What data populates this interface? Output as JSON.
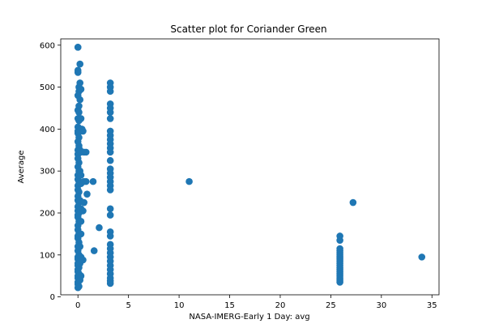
{
  "chart_data": {
    "type": "scatter",
    "title": "Scatter plot for Coriander Green",
    "xlabel": "NASA-IMERG-Early 1 Day: avg",
    "ylabel": "Average",
    "xlim": [
      -1.7,
      35.7
    ],
    "ylim": [
      5.0,
      615.0
    ],
    "xticks": [
      0,
      5,
      10,
      15,
      20,
      25,
      30,
      35
    ],
    "yticks": [
      0,
      100,
      200,
      300,
      400,
      500,
      600
    ],
    "grid": false,
    "legend": "none",
    "marker_color": "#1f77b4",
    "series": [
      {
        "points": [
          [
            0,
            595
          ],
          [
            0,
            595
          ],
          [
            0,
            535
          ],
          [
            0,
            540
          ],
          [
            0.1,
            500
          ],
          [
            0.1,
            490
          ],
          [
            0,
            480
          ],
          [
            0.1,
            455
          ],
          [
            0,
            445
          ],
          [
            0.1,
            440
          ],
          [
            0,
            425
          ],
          [
            0.1,
            420
          ],
          [
            0,
            405
          ],
          [
            0.1,
            400
          ],
          [
            0,
            395
          ],
          [
            0,
            390
          ],
          [
            0.1,
            380
          ],
          [
            0,
            370
          ],
          [
            0.1,
            360
          ],
          [
            0,
            350
          ],
          [
            0.1,
            345
          ],
          [
            0,
            340
          ],
          [
            0,
            330
          ],
          [
            0.1,
            320
          ],
          [
            0,
            310
          ],
          [
            0.1,
            300
          ],
          [
            0,
            290
          ],
          [
            0,
            280
          ],
          [
            0.1,
            275
          ],
          [
            0,
            265
          ],
          [
            0,
            255
          ],
          [
            0.1,
            250
          ],
          [
            0,
            240
          ],
          [
            0,
            230
          ],
          [
            0.1,
            225
          ],
          [
            0,
            215
          ],
          [
            0,
            205
          ],
          [
            0.1,
            200
          ],
          [
            0,
            195
          ],
          [
            0,
            190
          ],
          [
            0.1,
            180
          ],
          [
            0,
            170
          ],
          [
            0,
            160
          ],
          [
            0.1,
            150
          ],
          [
            0,
            145
          ],
          [
            0,
            140
          ],
          [
            0.1,
            130
          ],
          [
            0,
            120
          ],
          [
            0,
            110
          ],
          [
            0.1,
            100
          ],
          [
            0,
            95
          ],
          [
            0,
            90
          ],
          [
            0.1,
            85
          ],
          [
            0,
            80
          ],
          [
            0,
            75
          ],
          [
            0.1,
            70
          ],
          [
            0,
            65
          ],
          [
            0,
            60
          ],
          [
            0.1,
            55
          ],
          [
            0,
            50
          ],
          [
            0,
            45
          ],
          [
            0.1,
            40
          ],
          [
            0,
            35
          ],
          [
            0,
            30
          ],
          [
            0.1,
            25
          ],
          [
            0,
            22
          ],
          [
            0.2,
            555
          ],
          [
            0.2,
            510
          ],
          [
            0.2,
            470
          ],
          [
            0.2,
            395
          ],
          [
            0.2,
            350
          ],
          [
            0.2,
            300
          ],
          [
            0.2,
            270
          ],
          [
            0.2,
            230
          ],
          [
            0.2,
            180
          ],
          [
            0.2,
            120
          ],
          [
            0.2,
            80
          ],
          [
            0.2,
            40
          ],
          [
            0.3,
            495
          ],
          [
            0.3,
            425
          ],
          [
            0.3,
            400
          ],
          [
            0.3,
            345
          ],
          [
            0.3,
            290
          ],
          [
            0.3,
            270
          ],
          [
            0.3,
            210
          ],
          [
            0.3,
            180
          ],
          [
            0.3,
            150
          ],
          [
            0.3,
            95
          ],
          [
            0.3,
            50
          ],
          [
            0.4,
            400
          ],
          [
            0.5,
            395
          ],
          [
            0.6,
            345
          ],
          [
            0.6,
            275
          ],
          [
            0.6,
            225
          ],
          [
            0.5,
            205
          ],
          [
            0.5,
            88
          ],
          [
            0.8,
            345
          ],
          [
            0.8,
            275
          ],
          [
            0.9,
            245
          ],
          [
            1.5,
            275
          ],
          [
            1.6,
            110
          ],
          [
            2.1,
            165
          ],
          [
            3.2,
            510
          ],
          [
            3.2,
            500
          ],
          [
            3.2,
            490
          ],
          [
            3.2,
            460
          ],
          [
            3.2,
            450
          ],
          [
            3.2,
            440
          ],
          [
            3.2,
            425
          ],
          [
            3.2,
            395
          ],
          [
            3.2,
            385
          ],
          [
            3.2,
            375
          ],
          [
            3.2,
            365
          ],
          [
            3.2,
            355
          ],
          [
            3.2,
            345
          ],
          [
            3.2,
            325
          ],
          [
            3.2,
            305
          ],
          [
            3.2,
            295
          ],
          [
            3.2,
            285
          ],
          [
            3.2,
            275
          ],
          [
            3.2,
            265
          ],
          [
            3.2,
            255
          ],
          [
            3.2,
            210
          ],
          [
            3.2,
            195
          ],
          [
            3.2,
            155
          ],
          [
            3.2,
            145
          ],
          [
            3.2,
            125
          ],
          [
            3.2,
            115
          ],
          [
            3.2,
            105
          ],
          [
            3.2,
            95
          ],
          [
            3.2,
            85
          ],
          [
            3.2,
            75
          ],
          [
            3.2,
            65
          ],
          [
            3.2,
            55
          ],
          [
            3.2,
            45
          ],
          [
            3.2,
            38
          ],
          [
            3.2,
            32
          ],
          [
            11,
            275
          ],
          [
            27.2,
            225
          ],
          [
            34,
            95
          ],
          [
            25.9,
            145
          ],
          [
            25.9,
            135
          ],
          [
            25.9,
            115
          ],
          [
            25.9,
            110
          ],
          [
            25.9,
            105
          ],
          [
            25.9,
            100
          ],
          [
            25.9,
            95
          ],
          [
            25.9,
            90
          ],
          [
            25.9,
            85
          ],
          [
            25.9,
            80
          ],
          [
            25.9,
            75
          ],
          [
            25.9,
            70
          ],
          [
            25.9,
            65
          ],
          [
            25.9,
            60
          ],
          [
            25.9,
            55
          ],
          [
            25.9,
            50
          ],
          [
            25.9,
            45
          ],
          [
            25.9,
            40
          ],
          [
            25.9,
            35
          ]
        ]
      }
    ]
  }
}
